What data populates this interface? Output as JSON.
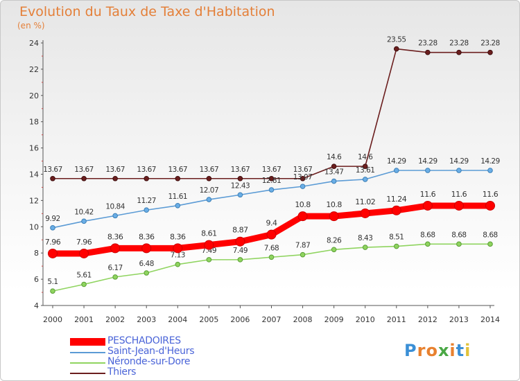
{
  "header": {
    "title": "Evolution du Taux de Taxe d'Habitation",
    "unit": "(en %)"
  },
  "logo": {
    "text": "Proxiti"
  },
  "chart_data": {
    "type": "line",
    "title": "Evolution du Taux de Taxe d'Habitation",
    "ylabel": "(en %)",
    "xlabel": "",
    "x": [
      2000,
      2001,
      2002,
      2003,
      2004,
      2005,
      2006,
      2007,
      2008,
      2009,
      2010,
      2011,
      2012,
      2013,
      2014
    ],
    "ylim": [
      4,
      24
    ],
    "yticks": [
      4,
      6,
      8,
      10,
      12,
      14,
      16,
      18,
      20,
      22,
      24
    ],
    "grid": false,
    "legend_position": "bottom-left",
    "series": [
      {
        "name": "Thiers",
        "color": "#6b1e1e",
        "values": [
          13.67,
          13.67,
          13.67,
          13.67,
          13.67,
          13.67,
          13.67,
          13.67,
          13.67,
          14.6,
          14.6,
          23.55,
          23.28,
          23.28,
          23.28
        ],
        "labels": [
          "13.67",
          "13.67",
          "13.67",
          "13.67",
          "13.67",
          "13.67",
          "13.67",
          "13.67",
          "13.67",
          "14.6",
          "14.6",
          "23.55",
          "23.28",
          "23.28",
          "23.28"
        ]
      },
      {
        "name": "Saint-Jean-d'Heurs",
        "color": "#5b9bd5",
        "values": [
          9.92,
          10.42,
          10.84,
          11.27,
          11.61,
          12.07,
          12.43,
          12.81,
          13.07,
          13.47,
          13.61,
          14.29,
          14.29,
          14.29,
          14.29
        ],
        "labels": [
          "9.92",
          "10.42",
          "10.84",
          "11.27",
          "11.61",
          "12.07",
          "12.43",
          "12.81",
          "13.07",
          "13.47",
          "13.61",
          "14.29",
          "14.29",
          "14.29",
          "14.29"
        ]
      },
      {
        "name": "Néronde-sur-Dore",
        "color": "#8fd45f",
        "values": [
          5.1,
          5.61,
          6.17,
          6.48,
          7.13,
          7.49,
          7.49,
          7.68,
          7.87,
          8.26,
          8.43,
          8.51,
          8.68,
          8.68,
          8.68
        ],
        "labels": [
          "5.1",
          "5.61",
          "6.17",
          "6.48",
          "7.13",
          "7.49",
          "7.49",
          "7.68",
          "7.87",
          "8.26",
          "8.43",
          "8.51",
          "8.68",
          "8.68",
          "8.68"
        ]
      },
      {
        "name": "PESCHADOIRES",
        "color": "#ff0000",
        "values": [
          7.96,
          7.96,
          8.36,
          8.36,
          8.36,
          8.61,
          8.87,
          9.4,
          10.8,
          10.8,
          11.02,
          11.24,
          11.6,
          11.6,
          11.6
        ],
        "labels": [
          "7.96",
          "7.96",
          "8.36",
          "8.36",
          "8.36",
          "8.61",
          "8.87",
          "9.4",
          "10.8",
          "10.8",
          "11.02",
          "11.24",
          "11.6",
          "11.6",
          "11.6"
        ]
      }
    ],
    "legend": [
      "PESCHADOIRES",
      "Saint-Jean-d'Heurs",
      "Néronde-sur-Dore",
      "Thiers"
    ]
  }
}
